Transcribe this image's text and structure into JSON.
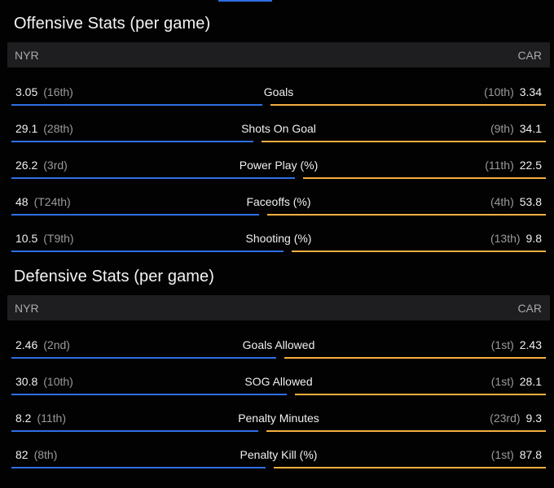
{
  "offensive": {
    "title": "Offensive Stats (per game)",
    "home_team": "NYR",
    "away_team": "CAR",
    "rows": [
      {
        "label": "Goals",
        "left_value": "3.05",
        "left_rank": "(16th)",
        "right_value": "3.34",
        "right_rank": "(10th)",
        "left_share": 0.477
      },
      {
        "label": "Shots On Goal",
        "left_value": "29.1",
        "left_rank": "(28th)",
        "right_value": "34.1",
        "right_rank": "(9th)",
        "left_share": 0.46
      },
      {
        "label": "Power Play (%)",
        "left_value": "26.2",
        "left_rank": "(3rd)",
        "right_value": "22.5",
        "right_rank": "(11th)",
        "left_share": 0.538
      },
      {
        "label": "Faceoffs (%)",
        "left_value": "48",
        "left_rank": "(T24th)",
        "right_value": "53.8",
        "right_rank": "(4th)",
        "left_share": 0.471
      },
      {
        "label": "Shooting (%)",
        "left_value": "10.5",
        "left_rank": "(T9th)",
        "right_value": "9.8",
        "right_rank": "(13th)",
        "left_share": 0.517
      }
    ]
  },
  "defensive": {
    "title": "Defensive Stats (per game)",
    "home_team": "NYR",
    "away_team": "CAR",
    "rows": [
      {
        "label": "Goals Allowed",
        "left_value": "2.46",
        "left_rank": "(2nd)",
        "right_value": "2.43",
        "right_rank": "(1st)",
        "left_share": 0.503
      },
      {
        "label": "SOG Allowed",
        "left_value": "30.8",
        "left_rank": "(10th)",
        "right_value": "28.1",
        "right_rank": "(1st)",
        "left_share": 0.523
      },
      {
        "label": "Penalty Minutes",
        "left_value": "8.2",
        "left_rank": "(11th)",
        "right_value": "9.3",
        "right_rank": "(23rd)",
        "left_share": 0.469
      },
      {
        "label": "Penalty Kill (%)",
        "left_value": "82",
        "left_rank": "(8th)",
        "right_value": "87.8",
        "right_rank": "(1st)",
        "left_share": 0.483
      }
    ]
  },
  "colors": {
    "home_bar": "#2f6fe4",
    "away_bar": "#f5b041",
    "header_bg": "#1e1e20",
    "page_bg": "#020202"
  }
}
